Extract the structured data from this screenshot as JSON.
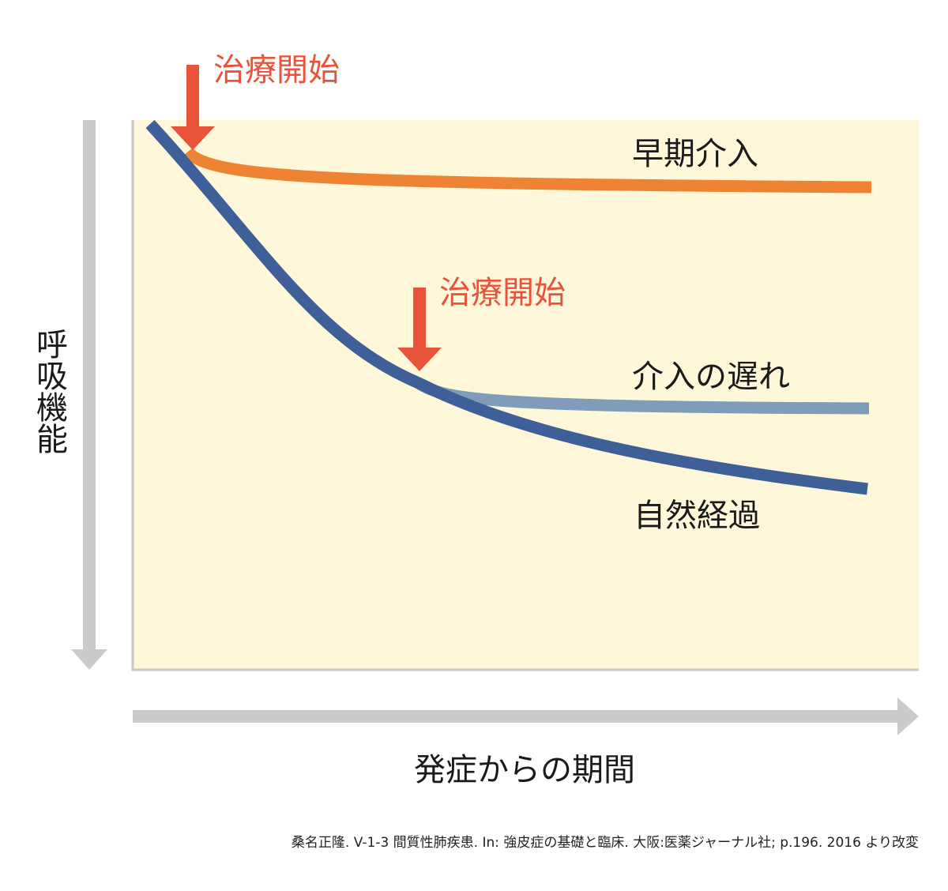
{
  "treatment_start_label": "治療開始",
  "curves": {
    "early": {
      "label": "早期介入",
      "color": "#ee8433"
    },
    "delayed": {
      "label": "介入の遅れ",
      "color": "#7f9db8"
    },
    "natural": {
      "label": "自然経過",
      "color": "#3f5f98"
    }
  },
  "y_axis": {
    "label": "呼吸機能",
    "direction": "down"
  },
  "x_axis": {
    "label": "発症からの期間",
    "direction": "right"
  },
  "colors": {
    "background_panel": "#fff7d9",
    "arrow_marker": "#e8533a",
    "axis_arrow": "#cbcbcb"
  },
  "citation": "桑名正隆. V-1-3 間質性肺疾患. In: 強皮症の基礎と臨床. 大阪:医薬ジャーナル社; p.196. 2016 より改変"
}
